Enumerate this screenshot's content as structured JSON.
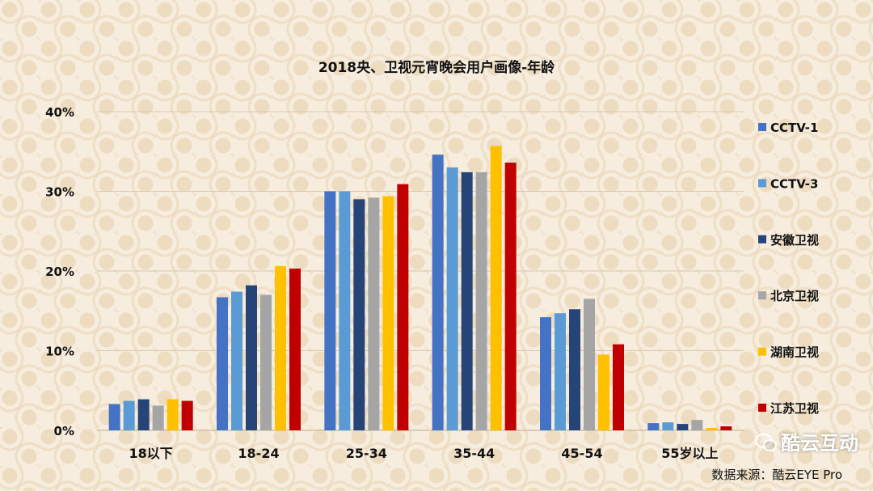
{
  "chart_data": {
    "type": "bar",
    "title": "2018央、卫视元宵晚会用户画像-年龄",
    "categories": [
      "18以下",
      "18-24",
      "25-34",
      "35-44",
      "45-54",
      "55岁以上"
    ],
    "ylim": [
      0,
      40
    ],
    "yticks": [
      "0%",
      "10%",
      "20%",
      "30%",
      "40%"
    ],
    "grid": true,
    "legend_position": "right",
    "series": [
      {
        "name": "CCTV-1",
        "color": "#4472c4",
        "values": [
          3.3,
          16.7,
          30.0,
          34.6,
          14.2,
          0.9
        ]
      },
      {
        "name": "CCTV-3",
        "color": "#5b9bd5",
        "values": [
          3.7,
          17.4,
          30.0,
          33.0,
          14.7,
          1.0
        ]
      },
      {
        "name": "安徽卫视",
        "color": "#264478",
        "values": [
          3.9,
          18.2,
          29.0,
          32.4,
          15.2,
          0.8
        ]
      },
      {
        "name": "北京卫视",
        "color": "#a5a5a5",
        "values": [
          3.1,
          17.0,
          29.2,
          32.4,
          16.5,
          1.3
        ]
      },
      {
        "name": "湖南卫视",
        "color": "#ffc000",
        "values": [
          3.9,
          20.6,
          29.4,
          35.7,
          9.5,
          0.3
        ]
      },
      {
        "name": "江苏卫视",
        "color": "#c00000",
        "values": [
          3.7,
          20.3,
          30.9,
          33.6,
          10.8,
          0.5
        ]
      }
    ]
  },
  "watermark": {
    "text": "酷云互动",
    "icon": "wechat-icon"
  },
  "source_text": "数据来源：酷云EYE Pro"
}
